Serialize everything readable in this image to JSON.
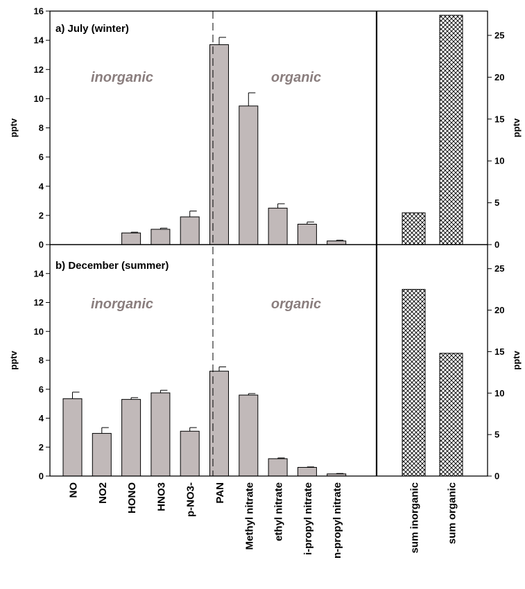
{
  "chart_data": [
    {
      "type": "bar",
      "panel": "a",
      "title": "a) July (winter)",
      "ylabel": "pptv",
      "ylim": [
        0,
        16
      ],
      "yticks": [
        0,
        2,
        4,
        6,
        8,
        10,
        12,
        14,
        16
      ],
      "categories": [
        "NO",
        "NO2",
        "HONO",
        "HNO3",
        "p-NO3-",
        "PAN",
        "Methyl nitrate",
        "ethyl nitrate",
        "i-propyl nitrate",
        "n-propyl nitrate"
      ],
      "values": [
        0,
        0,
        0.8,
        1.05,
        1.9,
        13.7,
        9.5,
        2.5,
        1.4,
        0.25
      ],
      "errors": [
        0,
        0,
        0.05,
        0.08,
        0.4,
        0.5,
        0.9,
        0.3,
        0.15,
        0.05
      ],
      "annotations": [
        "inorganic",
        "organic"
      ],
      "summary": {
        "ylabel": "pptv",
        "ylim": [
          0,
          27.9
        ],
        "yticks": [
          0,
          5,
          10,
          15,
          20,
          25
        ],
        "categories": [
          "sum inorganic",
          "sum organic"
        ],
        "values": [
          3.8,
          27.4
        ]
      }
    },
    {
      "type": "bar",
      "panel": "b",
      "title": "b) December (summer)",
      "ylabel": "pptv",
      "ylim": [
        0,
        16
      ],
      "yticks": [
        0,
        2,
        4,
        6,
        8,
        10,
        12,
        14
      ],
      "categories": [
        "NO",
        "NO2",
        "HONO",
        "HNO3",
        "p-NO3-",
        "PAN",
        "Methyl nitrate",
        "ethyl nitrate",
        "i-propyl nitrate",
        "n-propyl nitrate"
      ],
      "values": [
        5.35,
        2.95,
        5.3,
        5.75,
        3.1,
        7.25,
        5.6,
        1.2,
        0.6,
        0.15
      ],
      "errors": [
        0.45,
        0.4,
        0.12,
        0.18,
        0.25,
        0.3,
        0.1,
        0.05,
        0.03,
        0.03
      ],
      "annotations": [
        "inorganic",
        "organic"
      ],
      "summary": {
        "ylabel": "pptv",
        "ylim": [
          0,
          27.9
        ],
        "yticks": [
          0,
          5,
          10,
          15,
          20,
          25
        ],
        "categories": [
          "sum inorganic",
          "sum organic"
        ],
        "values": [
          22.5,
          14.8
        ]
      }
    }
  ],
  "colors": {
    "bar_fill": "#c1b9b9",
    "summary_hatch": "#000000",
    "annotation": "#8a7e7e"
  }
}
